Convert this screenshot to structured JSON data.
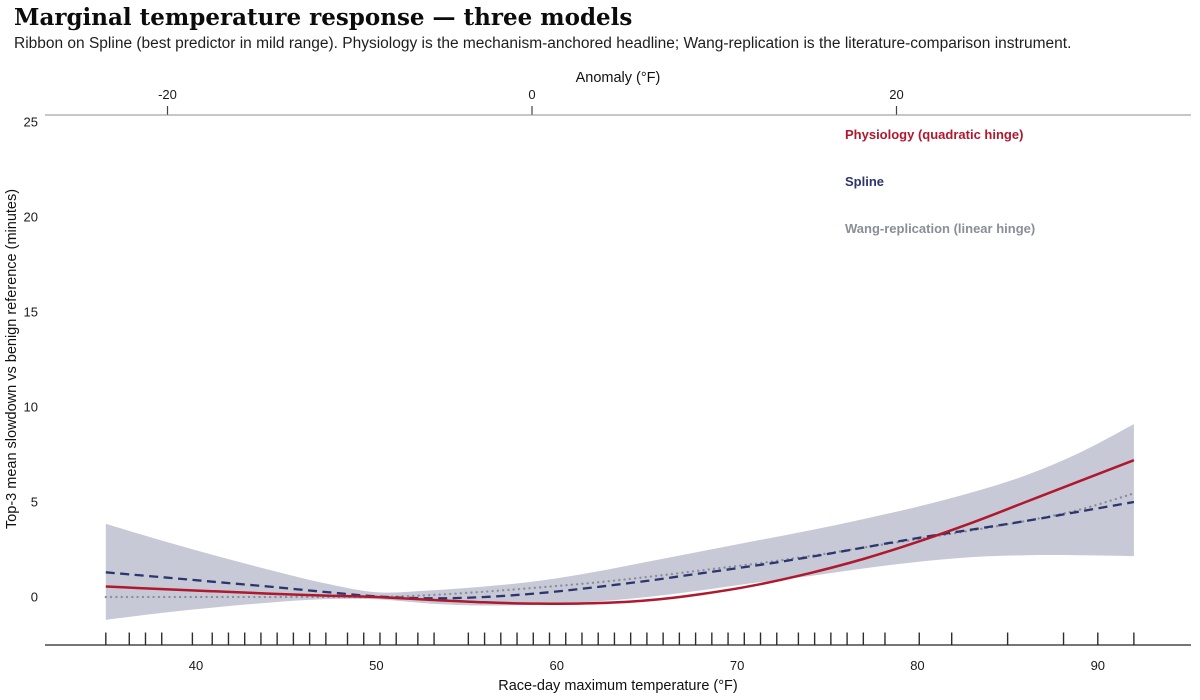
{
  "header": {
    "title": "Marginal temperature response — three models",
    "subtitle": "Ribbon on Spline (best predictor in mild range). Physiology is the mechanism-anchored headline; Wang-replication is the literature-comparison instrument."
  },
  "chart_data": {
    "type": "line",
    "title": "Marginal temperature response — three models",
    "x_bottom": {
      "label": "Race-day maximum temperature (°F)",
      "ticks": [
        40,
        50,
        60,
        70,
        80,
        90
      ],
      "range": [
        31.7,
        95.2
      ]
    },
    "x_top": {
      "label": "Anomaly (°F)",
      "ticks": [
        -20,
        0,
        20
      ],
      "range": [
        -26.7,
        36.2
      ]
    },
    "y": {
      "label": "Top-3 mean slowdown vs benign reference (minutes)",
      "ticks": [
        0,
        5,
        10,
        15,
        20,
        25
      ],
      "range": [
        -2.5,
        25.6
      ]
    },
    "grid": false,
    "legend_position": "upper-right",
    "x": [
      35,
      38,
      41,
      44,
      47,
      50,
      53,
      56,
      59,
      62,
      65,
      68,
      71,
      74,
      77,
      80,
      83,
      86,
      89,
      92
    ],
    "series": [
      {
        "name": "Physiology (quadratic hinge)",
        "color": "#b0182d",
        "style": "solid",
        "values": [
          0.55,
          0.42,
          0.3,
          0.18,
          0.08,
          0.0,
          -0.15,
          -0.28,
          -0.35,
          -0.33,
          -0.18,
          0.15,
          0.62,
          1.25,
          2.0,
          2.9,
          3.9,
          5.0,
          6.1,
          7.2
        ]
      },
      {
        "name": "Spline",
        "color": "#2b356e",
        "style": "dashed",
        "values": [
          1.3,
          1.05,
          0.8,
          0.55,
          0.28,
          0.03,
          -0.07,
          0.0,
          0.2,
          0.5,
          0.85,
          1.25,
          1.65,
          2.1,
          2.6,
          3.1,
          3.55,
          4.0,
          4.5,
          5.0
        ]
      },
      {
        "name": "Wang-replication (linear hinge)",
        "color": "#8b8e98",
        "style": "dotted",
        "values": [
          0.0,
          0.0,
          0.0,
          0.0,
          0.0,
          0.0,
          0.1,
          0.28,
          0.5,
          0.75,
          1.05,
          1.4,
          1.75,
          2.15,
          2.6,
          3.05,
          3.5,
          4.0,
          4.6,
          5.45
        ]
      }
    ],
    "ribbon": {
      "on": "Spline",
      "color": "#8f93ad",
      "opacity": 0.5,
      "lo": [
        -1.2,
        -0.85,
        -0.55,
        -0.3,
        -0.12,
        -0.12,
        -0.35,
        -0.45,
        -0.4,
        -0.25,
        0.0,
        0.35,
        0.75,
        1.1,
        1.5,
        1.85,
        2.1,
        2.2,
        2.2,
        2.15
      ],
      "hi": [
        3.85,
        3.0,
        2.2,
        1.45,
        0.75,
        0.25,
        0.35,
        0.55,
        0.85,
        1.3,
        1.85,
        2.4,
        2.95,
        3.5,
        4.1,
        4.75,
        5.5,
        6.4,
        7.6,
        9.1
      ]
    },
    "rug_x": [
      35,
      36.3,
      37.2,
      38.1,
      39.8,
      40.9,
      41.8,
      42.7,
      43.6,
      44.5,
      45.4,
      46.3,
      47.2,
      48.4,
      49.3,
      50.2,
      51.1,
      52.3,
      53.2,
      55.1,
      56.0,
      56.9,
      57.8,
      58.7,
      59.6,
      60.5,
      61.4,
      62.3,
      63.2,
      64.1,
      65.0,
      65.9,
      66.8,
      67.7,
      68.6,
      69.5,
      70.4,
      71.3,
      72.2,
      73.4,
      74.3,
      75.2,
      76.1,
      77.0,
      78.2,
      80.1,
      81.9,
      85.0,
      88.1,
      90.0,
      92.0
    ]
  }
}
